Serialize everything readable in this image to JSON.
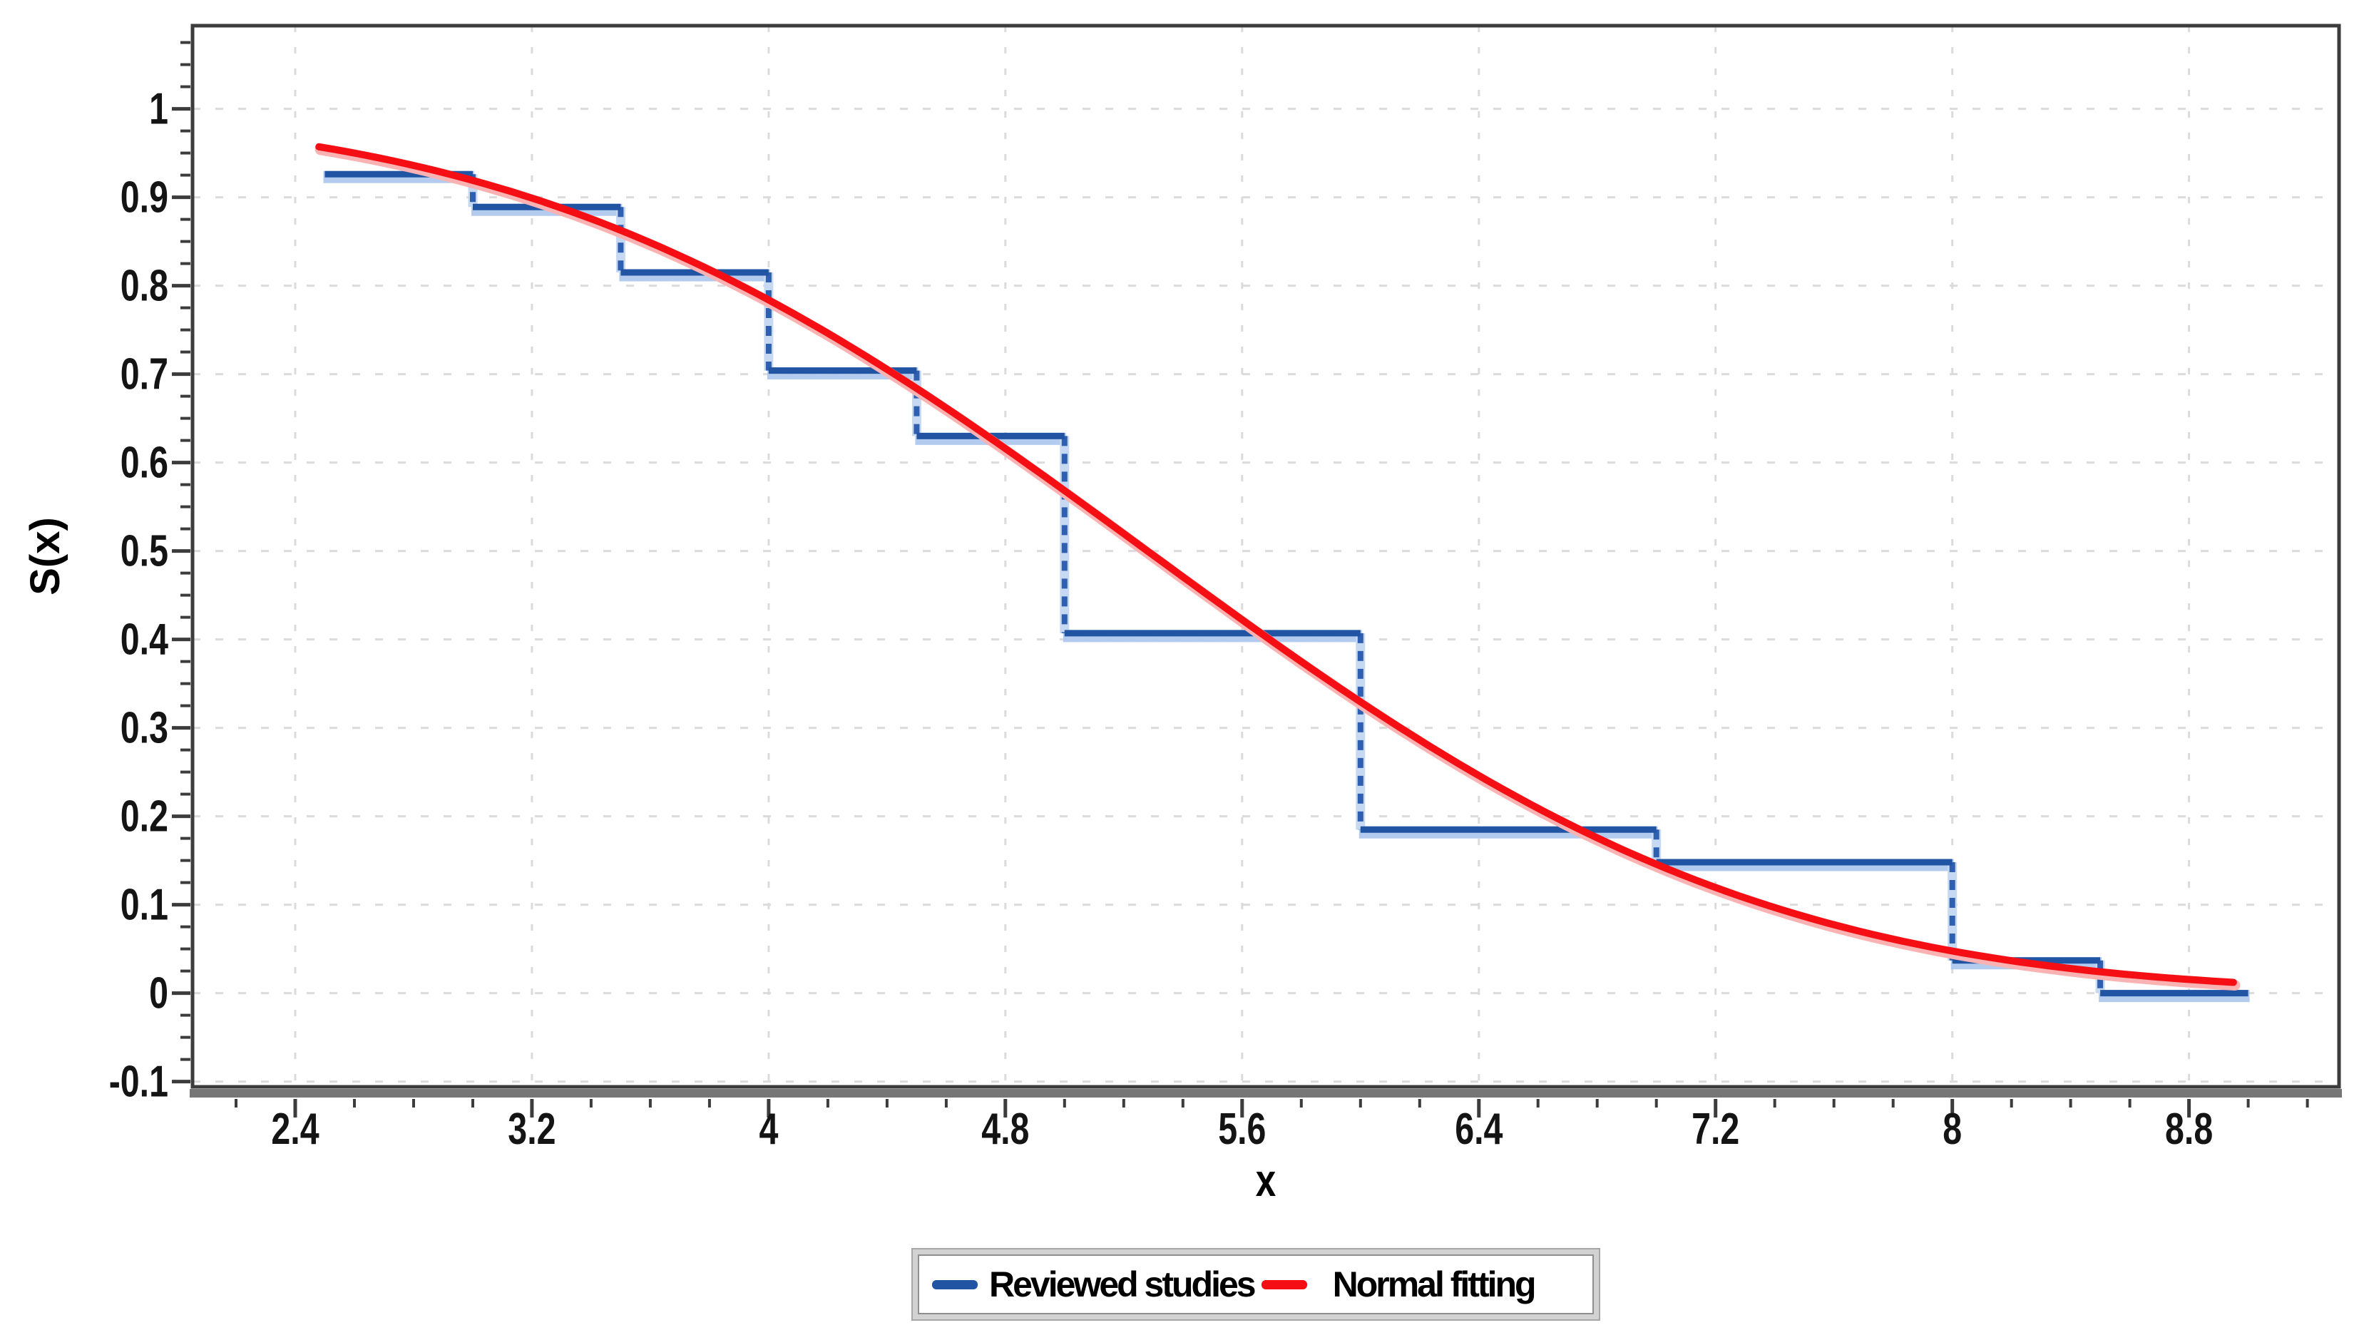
{
  "axis_titles": {
    "x": "x",
    "y": "S(x)"
  },
  "legend": {
    "position": "bottom-center",
    "entries": [
      {
        "label": "Reviewed studies",
        "color": "#2155A4"
      },
      {
        "label": "Normal fitting",
        "color": "#F50F14"
      }
    ]
  },
  "chart_data": {
    "type": "line",
    "title": "",
    "xlabel": "x",
    "ylabel": "S(x)",
    "grid": "dashed",
    "legend_position": "bottom-center",
    "x_axis": {
      "range": [
        2.053,
        9.307
      ],
      "major_ticks": [
        2.4,
        3.2,
        4,
        4.8,
        5.6,
        6.4,
        7.2,
        8,
        8.8
      ],
      "major_tick_labels": [
        "2.4",
        "3.2",
        "4",
        "4.8",
        "5.6",
        "6.4",
        "7.2",
        "8",
        "8.8"
      ],
      "minor_tick_step": 0.2
    },
    "y_axis": {
      "range": [
        -0.106,
        1.094
      ],
      "major_ticks": [
        1,
        0.9,
        0.8,
        0.7,
        0.6,
        0.5,
        0.4,
        0.3,
        0.2,
        0.1,
        0,
        -0.1
      ],
      "major_tick_labels": [
        "1",
        "0.9",
        "0.8",
        "0.7",
        "0.6",
        "0.5",
        "0.4",
        "0.3",
        "0.2",
        "0.1",
        "0",
        "-0.1"
      ],
      "minor_tick_step": 0.025
    },
    "series": [
      {
        "name": "Reviewed studies",
        "type": "step-survival",
        "color": "#2155A4",
        "halo_color": "#AEC9EE",
        "connector_color": "#2F5FB0",
        "connector_style": "dashed",
        "steps": [
          [
            2.5,
            3.0,
            0.926
          ],
          [
            3.0,
            3.5,
            0.889
          ],
          [
            3.5,
            4.0,
            0.815
          ],
          [
            4.0,
            4.5,
            0.704
          ],
          [
            4.5,
            5.0,
            0.63
          ],
          [
            5.0,
            6.0,
            0.407
          ],
          [
            6.0,
            7.0,
            0.185
          ],
          [
            7.0,
            8.0,
            0.148
          ],
          [
            8.0,
            8.5,
            0.037
          ],
          [
            8.5,
            9.0,
            0.0
          ]
        ]
      },
      {
        "name": "Normal fitting",
        "type": "curve",
        "model": "normal_survival",
        "color": "#F50F14",
        "halo_color": "#FBB2B2",
        "mean": 5.28,
        "sd": 1.63,
        "x_start": 2.48,
        "x_end": 8.95
      }
    ]
  }
}
